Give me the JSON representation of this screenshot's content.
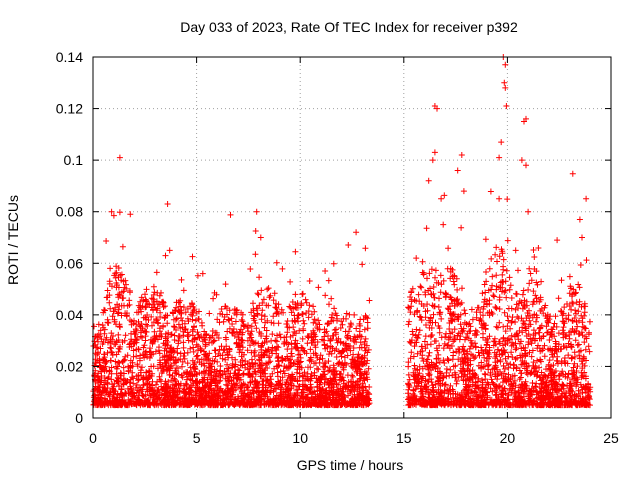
{
  "chart_data": {
    "type": "scatter",
    "title": "Day 033 of 2023, Rate Of TEC Index for receiver p392",
    "xlabel": "GPS time / hours",
    "ylabel": "ROTI / TECUs",
    "xlim": [
      0,
      25
    ],
    "ylim": [
      0,
      0.14
    ],
    "xticks": [
      0,
      5,
      10,
      15,
      20,
      25
    ],
    "yticks": [
      0,
      0.02,
      0.04,
      0.06,
      0.08,
      0.1,
      0.12,
      0.14
    ],
    "xtick_labels": [
      "0",
      "5",
      "10",
      "15",
      "20",
      "25"
    ],
    "ytick_labels": [
      "0",
      "0.02",
      "0.04",
      "0.06",
      "0.08",
      "0.1",
      "0.12",
      "0.14"
    ],
    "grid": true,
    "marker": "+",
    "color": "#ff0000",
    "data_gap_hours": [
      13.35,
      15.2
    ],
    "series": [
      {
        "name": "ROTI",
        "points": [
          [
            1.3,
            0.101
          ],
          [
            0.9,
            0.08
          ],
          [
            1.8,
            0.079
          ],
          [
            3.6,
            0.083
          ],
          [
            7.9,
            0.08
          ],
          [
            12.7,
            0.072
          ],
          [
            3.7,
            0.065
          ],
          [
            3.5,
            0.063
          ],
          [
            8.1,
            0.07
          ],
          [
            11.2,
            0.057
          ],
          [
            5.3,
            0.056
          ],
          [
            16.5,
            0.121
          ],
          [
            16.6,
            0.12
          ],
          [
            16.2,
            0.092
          ],
          [
            16.4,
            0.1
          ],
          [
            16.5,
            0.103
          ],
          [
            17.8,
            0.102
          ],
          [
            17.6,
            0.096
          ],
          [
            19.8,
            0.14
          ],
          [
            19.9,
            0.137
          ],
          [
            19.85,
            0.13
          ],
          [
            19.9,
            0.128
          ],
          [
            19.95,
            0.121
          ],
          [
            19.7,
            0.107
          ],
          [
            19.6,
            0.101
          ],
          [
            20.9,
            0.116
          ],
          [
            20.8,
            0.115
          ],
          [
            20.7,
            0.1
          ],
          [
            20.9,
            0.098
          ],
          [
            21.0,
            0.08
          ],
          [
            23.8,
            0.085
          ],
          [
            23.5,
            0.077
          ],
          [
            23.6,
            0.07
          ],
          [
            22.4,
            0.069
          ],
          [
            17.9,
            0.088
          ],
          [
            16.8,
            0.085
          ],
          [
            19.6,
            0.085
          ],
          [
            15.6,
            0.062
          ],
          [
            16.9,
            0.075
          ],
          [
            20.4,
            0.065
          ]
        ]
      }
    ]
  }
}
